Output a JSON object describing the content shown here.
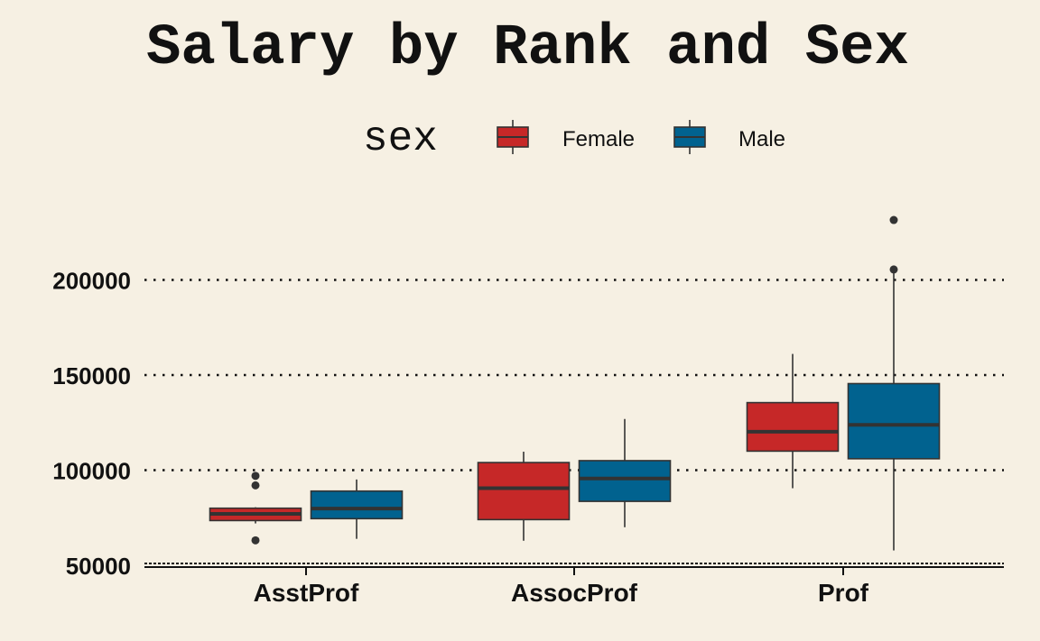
{
  "chart_data": {
    "type": "box",
    "title": "Salary by Rank and Sex",
    "xlabel": "",
    "ylabel": "",
    "ylim": [
      50000,
      230000
    ],
    "y_ticks": [
      50000,
      100000,
      150000,
      200000
    ],
    "y_tick_labels": [
      "50000",
      "100000",
      "150000",
      "200000"
    ],
    "categories": [
      "AsstProf",
      "AssocProf",
      "Prof"
    ],
    "grid": "horizontal dotted",
    "legend": {
      "title": "sex",
      "placement": "top",
      "entries": [
        {
          "label": "Female",
          "color": "#c62828"
        },
        {
          "label": "Male",
          "color": "#01628f"
        }
      ]
    },
    "series": [
      {
        "name": "Female",
        "color": "#c62828",
        "boxes": [
          {
            "category": "AsstProf",
            "min": 72000,
            "q1": 73500,
            "median": 77000,
            "q3": 80000,
            "max": 80500,
            "outliers": [
              97000,
              92000,
              63100
            ]
          },
          {
            "category": "AssocProf",
            "min": 62900,
            "q1": 74000,
            "median": 90500,
            "q3": 104000,
            "max": 109700,
            "outliers": []
          },
          {
            "category": "Prof",
            "min": 90500,
            "q1": 110000,
            "median": 120200,
            "q3": 135500,
            "max": 161100,
            "outliers": []
          }
        ]
      },
      {
        "name": "Male",
        "color": "#01628f",
        "boxes": [
          {
            "category": "AsstProf",
            "min": 63900,
            "q1": 74500,
            "median": 79800,
            "q3": 89000,
            "max": 95100,
            "outliers": []
          },
          {
            "category": "AssocProf",
            "min": 70000,
            "q1": 83600,
            "median": 95600,
            "q3": 105000,
            "max": 126900,
            "outliers": []
          },
          {
            "category": "Prof",
            "min": 57800,
            "q1": 106000,
            "median": 123800,
            "q3": 145500,
            "max": 204000,
            "outliers": [
              231500,
              205500
            ]
          }
        ]
      }
    ]
  }
}
